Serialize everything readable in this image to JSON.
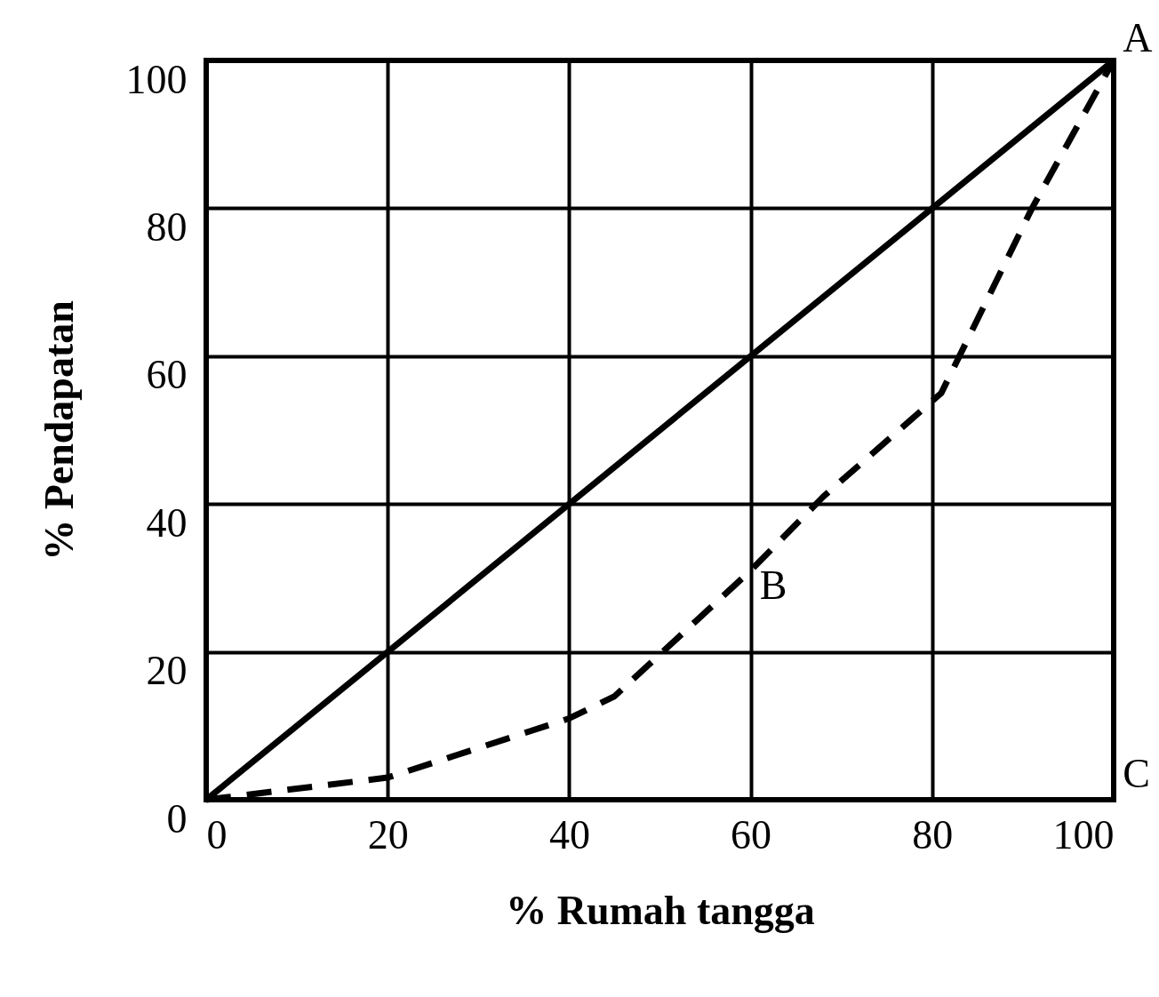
{
  "chart_data": {
    "type": "line",
    "xlabel": "% Rumah tangga",
    "ylabel": "% Pendapatan",
    "xlim": [
      0,
      100
    ],
    "ylim": [
      0,
      100
    ],
    "xticks": [
      0,
      20,
      40,
      60,
      80,
      100
    ],
    "yticks": [
      0,
      20,
      40,
      60,
      80,
      100
    ],
    "grid": true,
    "legend": false,
    "marker": "none",
    "series": [
      {
        "color": "#000000",
        "line_style": "solid",
        "x": [
          0,
          100
        ],
        "values": [
          0,
          100
        ]
      },
      {
        "color": "#000000",
        "line_style": "dashed",
        "x": [
          0,
          20,
          40,
          45,
          60,
          68,
          81,
          91,
          100
        ],
        "values": [
          0,
          3,
          11,
          14,
          31,
          41,
          55,
          80,
          100
        ]
      }
    ],
    "annotations": [
      "A",
      "B",
      "C"
    ]
  }
}
